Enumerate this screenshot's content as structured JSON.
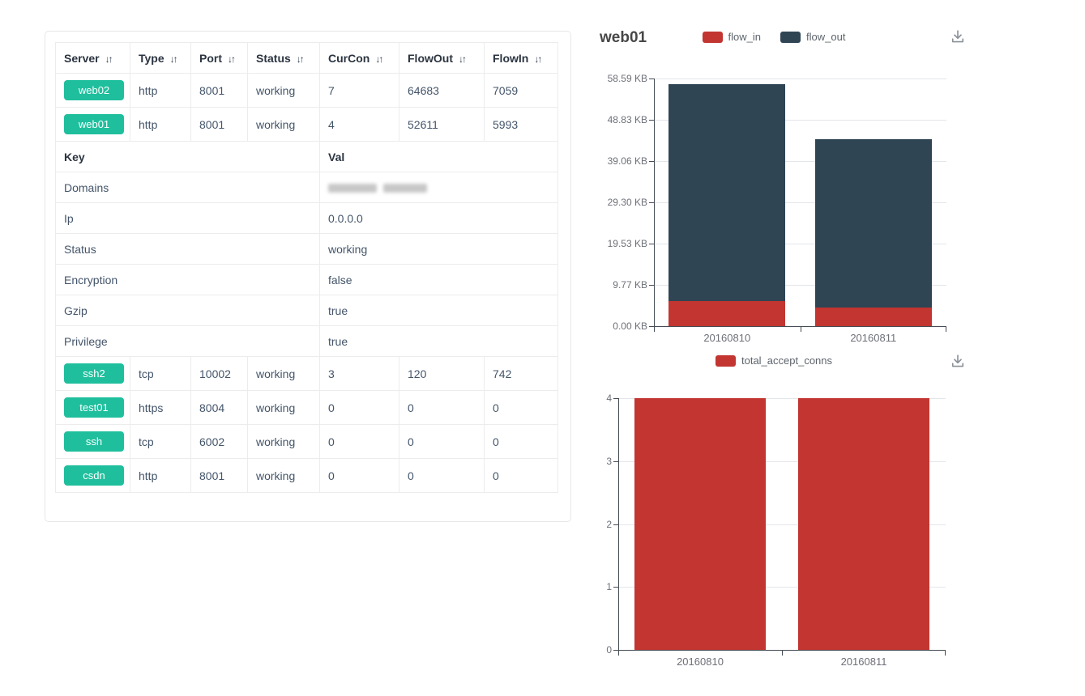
{
  "colors": {
    "badge_green": "#1fbf9d",
    "bar_red": "#c23531",
    "bar_dark_blue": "#2f4554",
    "axis": "#454b53",
    "grid": "#e3e6ea"
  },
  "icons": {
    "sort_icon_glyph": "↓↑",
    "download_icon": "arrow-down-into-tray"
  },
  "table": {
    "columns": [
      {
        "label": "Server"
      },
      {
        "label": "Type"
      },
      {
        "label": "Port"
      },
      {
        "label": "Status"
      },
      {
        "label": "CurCon"
      },
      {
        "label": "FlowOut"
      },
      {
        "label": "FlowIn"
      }
    ],
    "server_rows_top": [
      {
        "server": "web02",
        "type": "http",
        "port": "8001",
        "status": "working",
        "curcon": "7",
        "flowout": "64683",
        "flowin": "7059"
      },
      {
        "server": "web01",
        "type": "http",
        "port": "8001",
        "status": "working",
        "curcon": "4",
        "flowout": "52611",
        "flowin": "5993"
      }
    ],
    "kv_section": {
      "key_header": "Key",
      "val_header": "Val",
      "rows": [
        {
          "key": "Domains",
          "value": "",
          "redacted": true
        },
        {
          "key": "Ip",
          "value": "0.0.0.0"
        },
        {
          "key": "Status",
          "value": "working"
        },
        {
          "key": "Encryption",
          "value": "false"
        },
        {
          "key": "Gzip",
          "value": "true"
        },
        {
          "key": "Privilege",
          "value": "true"
        }
      ]
    },
    "server_rows_bottom": [
      {
        "server": "ssh2",
        "type": "tcp",
        "port": "10002",
        "status": "working",
        "curcon": "3",
        "flowout": "120",
        "flowin": "742"
      },
      {
        "server": "test01",
        "type": "https",
        "port": "8004",
        "status": "working",
        "curcon": "0",
        "flowout": "0",
        "flowin": "0"
      },
      {
        "server": "ssh",
        "type": "tcp",
        "port": "6002",
        "status": "working",
        "curcon": "0",
        "flowout": "0",
        "flowin": "0"
      },
      {
        "server": "csdn",
        "type": "http",
        "port": "8001",
        "status": "working",
        "curcon": "0",
        "flowout": "0",
        "flowin": "0"
      }
    ]
  },
  "chart_data": [
    {
      "type": "bar",
      "stacked": true,
      "title": "web01",
      "categories": [
        "20160810",
        "20160811"
      ],
      "series": [
        {
          "name": "flow_in",
          "color": "#c23531",
          "values": [
            5.85,
            4.4
          ]
        },
        {
          "name": "flow_out",
          "color": "#2f4554",
          "values": [
            51.38,
            39.8
          ]
        }
      ],
      "ylim": [
        0,
        58.59
      ],
      "yticks": [
        "0.00 KB",
        "9.77 KB",
        "19.53 KB",
        "29.30 KB",
        "39.06 KB",
        "48.83 KB",
        "58.59 KB"
      ],
      "legend": [
        "flow_in",
        "flow_out"
      ],
      "legend_position": "top-center",
      "grid": true
    },
    {
      "type": "bar",
      "stacked": false,
      "title": "",
      "categories": [
        "20160810",
        "20160811"
      ],
      "series": [
        {
          "name": "total_accept_conns",
          "color": "#c23531",
          "values": [
            4,
            4
          ]
        }
      ],
      "ylim": [
        0,
        4
      ],
      "yticks": [
        "0",
        "1",
        "2",
        "3",
        "4"
      ],
      "legend": [
        "total_accept_conns"
      ],
      "legend_position": "top-center",
      "grid": true
    }
  ]
}
